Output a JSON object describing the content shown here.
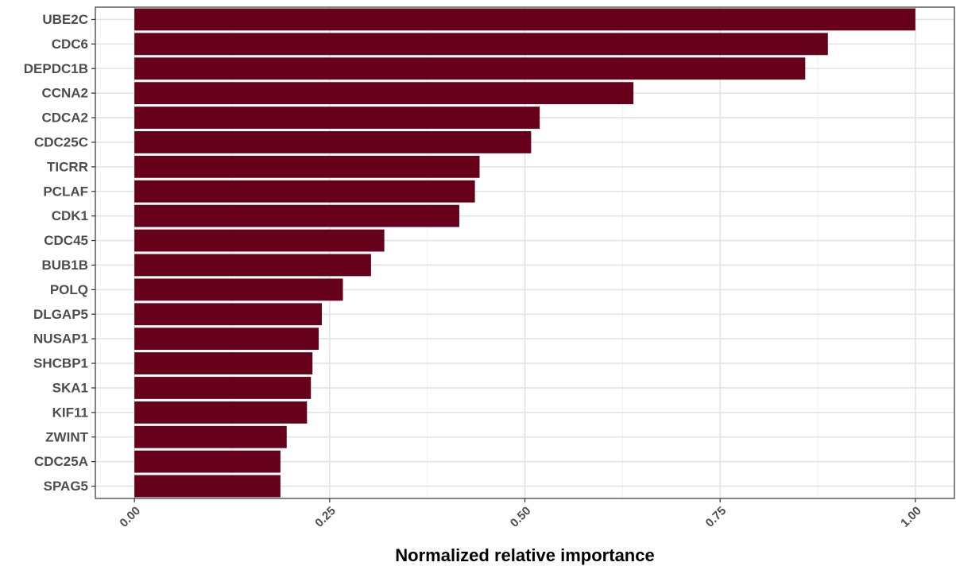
{
  "chart_data": {
    "type": "bar",
    "orientation": "horizontal",
    "categories": [
      "UBE2C",
      "CDC6",
      "DEPDC1B",
      "CCNA2",
      "CDCA2",
      "CDC25C",
      "TICRR",
      "PCLAF",
      "CDK1",
      "CDC45",
      "BUB1B",
      "POLQ",
      "DLGAP5",
      "NUSAP1",
      "SHCBP1",
      "SKA1",
      "KIF11",
      "ZWINT",
      "CDC25A",
      "SPAG5"
    ],
    "values": [
      1.0,
      0.888,
      0.859,
      0.639,
      0.519,
      0.508,
      0.442,
      0.436,
      0.416,
      0.32,
      0.303,
      0.267,
      0.24,
      0.236,
      0.228,
      0.226,
      0.221,
      0.195,
      0.187,
      0.187
    ],
    "xlabel": "Normalized relative importance",
    "ylabel": "",
    "xlim": [
      -0.05,
      1.05
    ],
    "xticks": [
      0.0,
      0.25,
      0.5,
      0.75,
      1.0
    ],
    "xtick_labels": [
      "0.00",
      "0.25",
      "0.50",
      "0.75",
      "1.00"
    ],
    "bar_color": "#67001a",
    "grid": true,
    "legend": "none"
  }
}
